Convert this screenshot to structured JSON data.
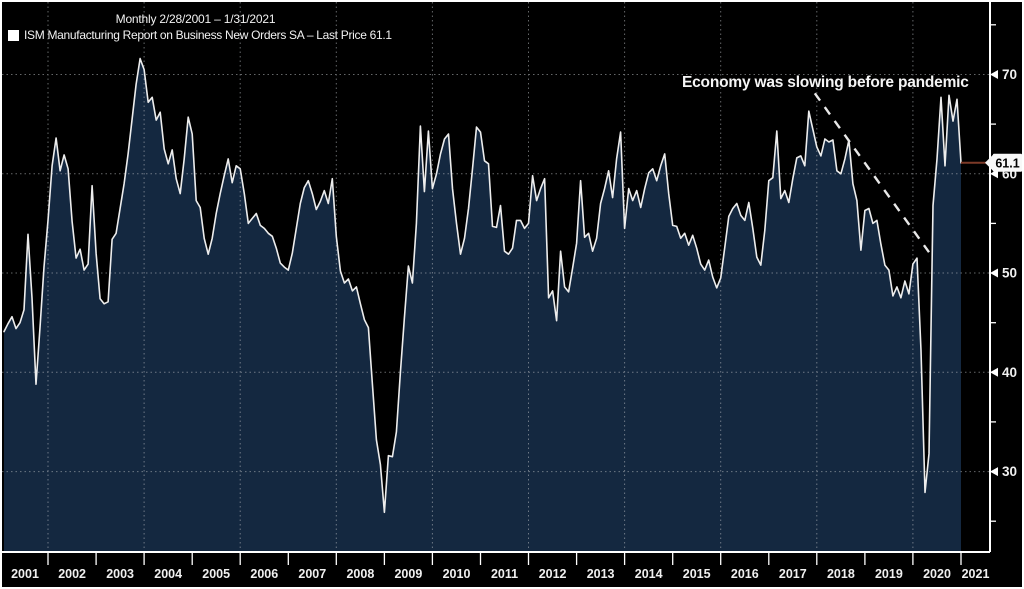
{
  "header": {
    "title": "Monthly 2/28/2001 – 1/31/2021",
    "legend_label": "ISM Manufacturing Report on Business New Orders SA – Last Price 61.1"
  },
  "annotation": {
    "text": "Economy was slowing before pandemic"
  },
  "last_price": {
    "value": "61.1"
  },
  "colors": {
    "background": "#000000",
    "area_fill": "#142840",
    "line": "#ededed",
    "grid": "#b8bcc0",
    "axis": "#ffffff",
    "label": "#f0f0f0",
    "last_price_line": "#7d3a28",
    "badge_bg": "#f8f8f8",
    "badge_text": "#000000",
    "trendline": "#e8e8e8"
  },
  "chart_data": {
    "type": "area",
    "title": "ISM Manufacturing Report on Business New Orders SA",
    "period": "Monthly 2/28/2001 – 1/31/2021",
    "last_price": 61.1,
    "start_month": "2001-02",
    "end_month": "2021-01",
    "grid": "dotted",
    "legend_position": "top-left",
    "y_axis": {
      "side": "right",
      "ticks": [
        "70",
        "60",
        "50",
        "40",
        "30"
      ],
      "tick_values": [
        70,
        60,
        50,
        40,
        30
      ],
      "minor_tick_values": [
        75,
        65,
        55,
        45,
        35,
        25
      ],
      "value_range": [
        21.9,
        77.3
      ]
    },
    "x_axis": {
      "year_labels": [
        "2001",
        "2002",
        "2003",
        "2004",
        "2005",
        "2006",
        "2007",
        "2008",
        "2009",
        "2010",
        "2011",
        "2012",
        "2013",
        "2014",
        "2015",
        "2016",
        "2017",
        "2018",
        "2019",
        "2020",
        "2021"
      ],
      "gridline_years": [
        2002,
        2004,
        2006,
        2008,
        2010,
        2012,
        2014,
        2016,
        2018,
        2020
      ]
    },
    "series": [
      {
        "name": "ISM Manufacturing Report on Business New Orders SA",
        "first_point": "Feb 2001",
        "monthly_values": [
          44.1,
          44.9,
          45.6,
          44.4,
          45.0,
          46.3,
          53.9,
          47.5,
          38.8,
          44.5,
          50.6,
          55.3,
          60.8,
          63.6,
          60.3,
          61.9,
          60.5,
          55.2,
          51.5,
          52.4,
          50.3,
          50.9,
          58.8,
          52.0,
          47.4,
          46.9,
          47.1,
          53.4,
          54.0,
          56.5,
          59.0,
          62.0,
          65.5,
          69.0,
          71.6,
          70.5,
          67.2,
          67.7,
          65.4,
          66.2,
          62.5,
          61.0,
          62.4,
          59.5,
          58.0,
          61.5,
          65.7,
          64.0,
          57.3,
          56.6,
          53.5,
          51.9,
          53.5,
          56.0,
          58.0,
          59.8,
          61.5,
          59.1,
          60.8,
          60.5,
          58.0,
          55.0,
          55.5,
          56.0,
          54.8,
          54.5,
          54.0,
          53.7,
          52.5,
          51.0,
          50.6,
          50.3,
          52.0,
          54.5,
          57.0,
          58.6,
          59.3,
          58.0,
          56.4,
          57.2,
          58.3,
          57.0,
          59.5,
          53.7,
          50.2,
          49.0,
          49.4,
          48.2,
          48.6,
          46.9,
          45.3,
          44.5,
          38.8,
          33.2,
          30.7,
          25.9,
          31.6,
          31.5,
          34.0,
          40.0,
          45.5,
          50.7,
          49.0,
          55.0,
          64.8,
          58.2,
          64.3,
          58.5,
          60.0,
          62.0,
          63.5,
          64.0,
          58.5,
          55.0,
          51.9,
          53.5,
          56.5,
          60.5,
          64.7,
          64.2,
          61.3,
          61.0,
          54.7,
          54.6,
          56.8,
          52.2,
          51.9,
          52.5,
          55.3,
          55.3,
          54.5,
          55.0,
          59.8,
          57.3,
          58.5,
          59.5,
          47.5,
          48.2,
          45.2,
          52.2,
          48.6,
          48.1,
          50.5,
          53.0,
          59.3,
          53.6,
          54.0,
          52.2,
          53.5,
          57.0,
          58.5,
          60.3,
          57.6,
          61.5,
          64.2,
          54.5,
          58.5,
          57.3,
          58.3,
          56.6,
          58.5,
          60.1,
          60.5,
          59.3,
          60.8,
          62.0,
          58.0,
          54.8,
          54.7,
          53.5,
          54.0,
          52.8,
          53.8,
          52.5,
          50.9,
          50.3,
          51.3,
          49.6,
          48.5,
          49.5,
          52.6,
          55.7,
          56.5,
          57.0,
          55.8,
          55.3,
          57.1,
          54.5,
          51.6,
          50.8,
          54.3,
          59.3,
          59.6,
          64.3,
          57.5,
          58.3,
          57.1,
          59.5,
          61.6,
          61.8,
          60.8,
          66.3,
          64.5,
          62.7,
          61.8,
          63.5,
          63.2,
          63.4,
          60.3,
          60.0,
          61.5,
          63.4,
          59.0,
          57.3,
          52.3,
          56.3,
          56.5,
          55.0,
          55.3,
          52.9,
          50.8,
          50.3,
          47.7,
          48.6,
          47.5,
          49.2,
          47.9,
          50.9,
          51.5,
          42.2,
          27.9,
          31.8,
          56.8,
          61.5,
          67.7,
          60.8,
          67.9,
          65.3,
          67.5,
          61.1
        ]
      }
    ],
    "annotation": {
      "text": "Economy was slowing before pandemic",
      "trendline": {
        "from_month_index": 202.5,
        "from_value": 68.1,
        "to_month_index": 231,
        "to_value": 52.1
      }
    }
  }
}
